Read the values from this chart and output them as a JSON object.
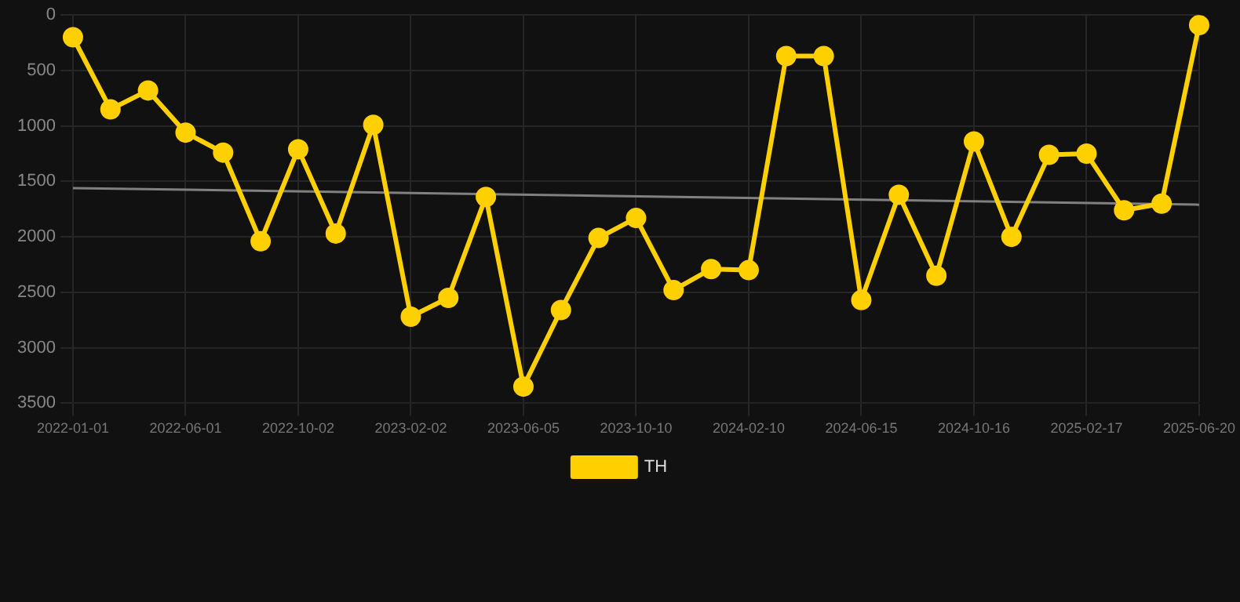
{
  "chart_data": {
    "type": "line",
    "categories": [
      "2022-01-01",
      null,
      null,
      "2022-06-01",
      null,
      null,
      "2022-10-02",
      null,
      null,
      "2023-02-02",
      null,
      null,
      "2023-06-05",
      null,
      null,
      "2023-10-10",
      null,
      null,
      "2024-02-10",
      null,
      null,
      "2024-06-15",
      null,
      null,
      "2024-10-16",
      null,
      null,
      "2025-02-17",
      null,
      null,
      "2025-06-20"
    ],
    "series": [
      {
        "name": "TH",
        "color": "#ffd000",
        "marker": "circle",
        "values": [
          200,
          850,
          680,
          1060,
          1240,
          2040,
          1210,
          1970,
          990,
          2720,
          2550,
          1640,
          3350,
          2660,
          2010,
          1830,
          2480,
          2290,
          2300,
          370,
          370,
          2570,
          1620,
          2350,
          1140,
          2000,
          1260,
          1250,
          1760,
          1700,
          90
        ]
      },
      {
        "color": "#808080",
        "marker": "none",
        "values": [
          1560,
          null,
          null,
          null,
          null,
          null,
          null,
          null,
          null,
          null,
          null,
          null,
          null,
          null,
          null,
          null,
          null,
          null,
          null,
          null,
          null,
          null,
          null,
          null,
          null,
          null,
          null,
          null,
          null,
          null,
          1710
        ]
      }
    ],
    "ylim": [
      3500,
      0
    ],
    "yticks": [
      0,
      500,
      1000,
      1500,
      2000,
      2500,
      3000,
      3500
    ],
    "grid": true,
    "legend": "bottom"
  }
}
